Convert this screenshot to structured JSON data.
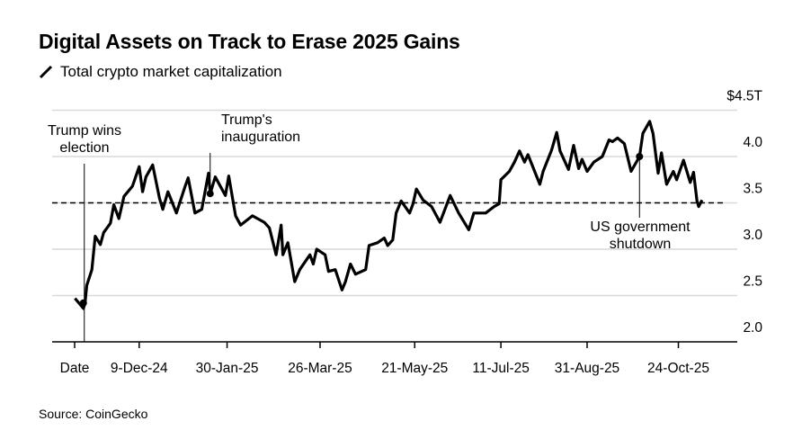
{
  "title": "Digital Assets on Track to Erase 2025 Gains",
  "legend": {
    "label": "Total crypto market capitalization",
    "icon": "slash-line-icon"
  },
  "source": "Source: CoinGecko",
  "chart_data": {
    "type": "line",
    "title": "Digital Assets on Track to Erase 2025 Gains",
    "xlabel": "Date",
    "ylabel": "Total crypto market capitalization ($T)",
    "x_units": "days since 2024-11-04",
    "ylim": [
      2.0,
      4.5
    ],
    "yticks": [
      {
        "v": 2.0,
        "label": "2.0"
      },
      {
        "v": 2.5,
        "label": "2.5"
      },
      {
        "v": 3.0,
        "label": "3.0"
      },
      {
        "v": 3.5,
        "label": "3.5"
      },
      {
        "v": 4.0,
        "label": "4.0"
      },
      {
        "v": 4.5,
        "label": "$4.5T"
      }
    ],
    "xticks": [
      {
        "d": 35,
        "label": "9-Dec-24"
      },
      {
        "d": 87,
        "label": "30-Jan-25"
      },
      {
        "d": 142,
        "label": "26-Mar-25"
      },
      {
        "d": 198,
        "label": "21-May-25"
      },
      {
        "d": 249,
        "label": "11-Jul-25"
      },
      {
        "d": 300,
        "label": "31-Aug-25"
      },
      {
        "d": 354,
        "label": "24-Oct-25"
      }
    ],
    "x_header_label": "Date",
    "grid": true,
    "reference_line": {
      "value": 3.5,
      "style": "dashed"
    },
    "series": [
      {
        "name": "Total crypto market capitalization",
        "color": "#000000",
        "points": [
          [
            -3,
            2.47
          ],
          [
            2,
            2.36
          ],
          [
            3,
            2.42
          ],
          [
            4,
            2.61
          ],
          [
            7,
            2.78
          ],
          [
            9,
            3.14
          ],
          [
            12,
            3.05
          ],
          [
            14,
            3.18
          ],
          [
            18,
            3.28
          ],
          [
            20,
            3.48
          ],
          [
            23,
            3.33
          ],
          [
            26,
            3.57
          ],
          [
            31,
            3.68
          ],
          [
            35,
            3.89
          ],
          [
            37,
            3.62
          ],
          [
            39,
            3.78
          ],
          [
            43,
            3.91
          ],
          [
            47,
            3.55
          ],
          [
            49,
            3.43
          ],
          [
            52,
            3.62
          ],
          [
            57,
            3.39
          ],
          [
            62,
            3.67
          ],
          [
            64,
            3.77
          ],
          [
            68,
            3.39
          ],
          [
            72,
            3.43
          ],
          [
            76,
            3.82
          ],
          [
            77,
            3.6
          ],
          [
            80,
            3.78
          ],
          [
            86,
            3.58
          ],
          [
            88,
            3.79
          ],
          [
            92,
            3.36
          ],
          [
            95,
            3.26
          ],
          [
            102,
            3.36
          ],
          [
            109,
            3.29
          ],
          [
            112,
            3.23
          ],
          [
            116,
            2.94
          ],
          [
            119,
            3.26
          ],
          [
            120,
            2.94
          ],
          [
            123,
            3.07
          ],
          [
            127,
            2.65
          ],
          [
            130,
            2.78
          ],
          [
            136,
            2.94
          ],
          [
            138,
            2.84
          ],
          [
            140,
            3.0
          ],
          [
            145,
            2.94
          ],
          [
            147,
            2.76
          ],
          [
            151,
            2.78
          ],
          [
            155,
            2.56
          ],
          [
            157,
            2.65
          ],
          [
            160,
            2.84
          ],
          [
            163,
            2.73
          ],
          [
            169,
            2.78
          ],
          [
            171,
            3.04
          ],
          [
            176,
            3.07
          ],
          [
            180,
            3.12
          ],
          [
            182,
            3.04
          ],
          [
            185,
            3.1
          ],
          [
            187,
            3.39
          ],
          [
            190,
            3.52
          ],
          [
            195,
            3.39
          ],
          [
            197,
            3.49
          ],
          [
            199,
            3.65
          ],
          [
            203,
            3.53
          ],
          [
            208,
            3.46
          ],
          [
            213,
            3.29
          ],
          [
            219,
            3.58
          ],
          [
            224,
            3.39
          ],
          [
            230,
            3.21
          ],
          [
            233,
            3.39
          ],
          [
            240,
            3.39
          ],
          [
            245,
            3.46
          ],
          [
            248,
            3.49
          ],
          [
            249,
            3.75
          ],
          [
            254,
            3.84
          ],
          [
            257,
            3.94
          ],
          [
            260,
            4.06
          ],
          [
            263,
            3.94
          ],
          [
            265,
            4.02
          ],
          [
            272,
            3.7
          ],
          [
            274,
            3.84
          ],
          [
            279,
            4.07
          ],
          [
            282,
            4.26
          ],
          [
            284,
            4.06
          ],
          [
            289,
            3.86
          ],
          [
            292,
            4.12
          ],
          [
            295,
            3.87
          ],
          [
            297,
            3.97
          ],
          [
            300,
            3.84
          ],
          [
            304,
            3.94
          ],
          [
            309,
            4.0
          ],
          [
            313,
            4.18
          ],
          [
            315,
            4.16
          ],
          [
            318,
            4.2
          ],
          [
            322,
            4.14
          ],
          [
            326,
            3.84
          ],
          [
            331,
            4.0
          ],
          [
            333,
            4.25
          ],
          [
            337,
            4.38
          ],
          [
            339,
            4.25
          ],
          [
            342,
            3.82
          ],
          [
            344,
            4.04
          ],
          [
            347,
            3.7
          ],
          [
            351,
            3.84
          ],
          [
            353,
            3.75
          ],
          [
            357,
            3.96
          ],
          [
            361,
            3.72
          ],
          [
            363,
            3.83
          ],
          [
            365,
            3.52
          ],
          [
            366,
            3.46
          ],
          [
            368,
            3.53
          ]
        ]
      }
    ],
    "annotations": [
      {
        "d": 2,
        "v": 2.42,
        "lines": [
          "Trump wins",
          "election"
        ]
      },
      {
        "d": 77,
        "v": 3.6,
        "lines": [
          "Trump's",
          "inauguration"
        ]
      },
      {
        "d": 331,
        "v": 4.0,
        "lines": [
          "US government",
          "shutdown"
        ]
      }
    ]
  }
}
